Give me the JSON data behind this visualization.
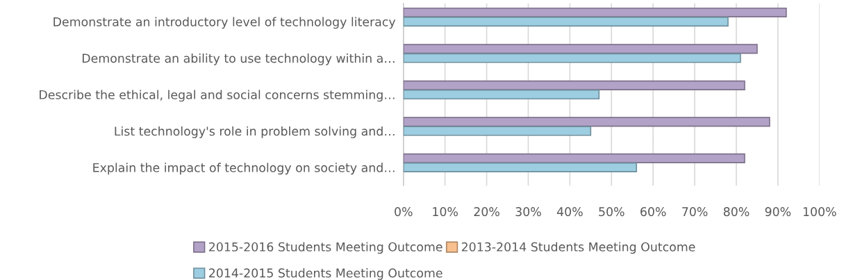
{
  "chart_data": {
    "type": "bar",
    "orientation": "horizontal",
    "categories": [
      "Demonstrate an introductory level of technology literacy",
      "Demonstrate an ability to use technology within a…",
      "Describe the ethical, legal and social concerns stemming…",
      "List technology's role in problem solving and…",
      "Explain the impact of technology on society and…"
    ],
    "series": [
      {
        "name": "2015-2016 Students Meeting Outcome",
        "color": "#b3a2c7",
        "values": [
          92,
          85,
          82,
          88,
          82
        ]
      },
      {
        "name": "2014-2015 Students Meeting Outcome",
        "color": "#9dcde0",
        "values": [
          78,
          81,
          47,
          45,
          56
        ]
      },
      {
        "name": "2013-2014 Students Meeting Outcome",
        "color": "#f9c08f",
        "values": [
          null,
          null,
          null,
          null,
          null
        ]
      }
    ],
    "xlim": [
      0,
      100
    ],
    "xticks": [
      {
        "value": 0,
        "label": "0%"
      },
      {
        "value": 10,
        "label": "10%"
      },
      {
        "value": 20,
        "label": "20%"
      },
      {
        "value": 30,
        "label": "30%"
      },
      {
        "value": 40,
        "label": "40%"
      },
      {
        "value": 50,
        "label": "50%"
      },
      {
        "value": 60,
        "label": "60%"
      },
      {
        "value": 70,
        "label": "70%"
      },
      {
        "value": 80,
        "label": "80%"
      },
      {
        "value": 90,
        "label": "90%"
      },
      {
        "value": 100,
        "label": "100%"
      }
    ],
    "grid": "x",
    "legend": "bottom"
  }
}
